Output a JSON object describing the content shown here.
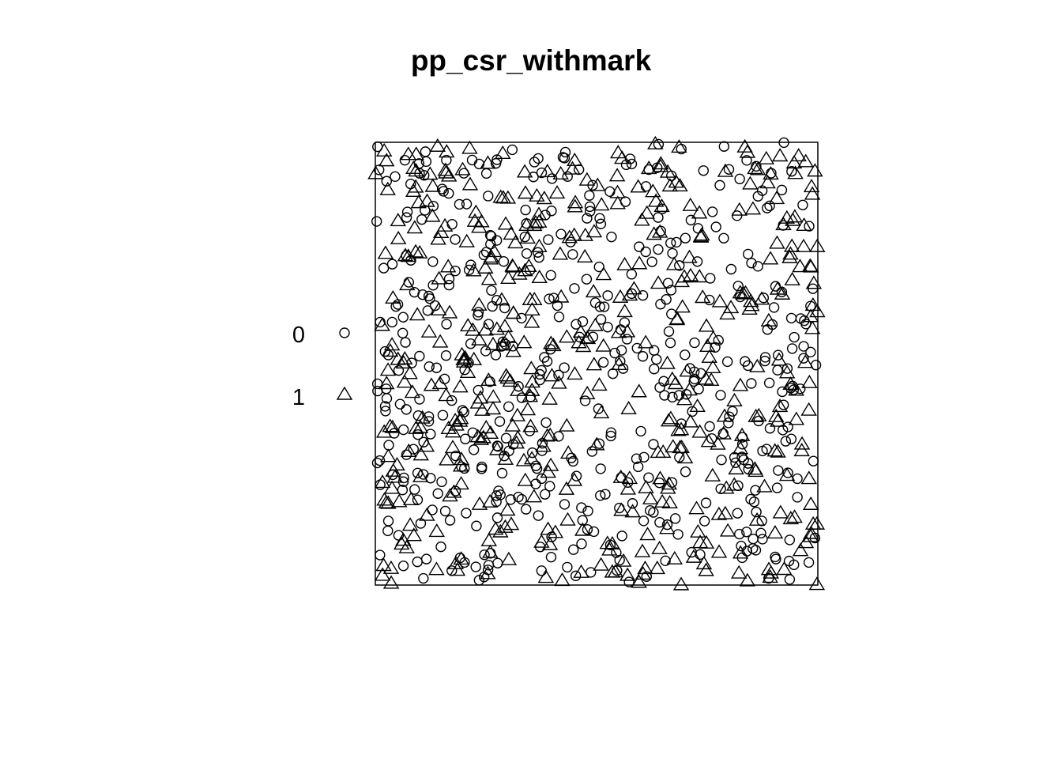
{
  "chart_data": {
    "type": "scatter",
    "title": "pp_csr_withmark",
    "xlim": [
      0,
      1
    ],
    "ylim": [
      0,
      1
    ],
    "point_count_approx": 1000,
    "marks": [
      {
        "label": "0",
        "symbol": "circle"
      },
      {
        "label": "1",
        "symbol": "triangle"
      }
    ],
    "legend_position": "left",
    "points_sample": {
      "series_0": {
        "x": [
          0.005,
          0.1,
          0.19,
          0.26,
          0.37,
          0.45,
          0.51,
          0.63,
          0.72,
          0.8,
          0.94,
          0.99
        ],
        "y": [
          0.99,
          0.93,
          0.86,
          0.79,
          0.74,
          0.67,
          0.6,
          0.53,
          0.46,
          0.38,
          0.33,
          0.28
        ]
      },
      "series_1": {
        "x": [
          0.02,
          0.13,
          0.24,
          0.31,
          0.42,
          0.55,
          0.66,
          0.71,
          0.86,
          0.91,
          0.98
        ],
        "y": [
          0.98,
          0.9,
          0.82,
          0.72,
          0.65,
          0.57,
          0.5,
          0.44,
          0.38,
          0.3,
          0.24
        ]
      }
    },
    "generation": "complete spatial randomness in unit square, approx 1000 points, ~50% each mark"
  },
  "colors": {
    "stroke": "#000000",
    "background": "#ffffff"
  }
}
